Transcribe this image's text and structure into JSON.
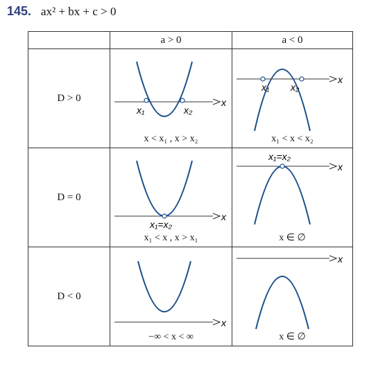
{
  "header": {
    "number": "145.",
    "inequality": "ax² + bx + c > 0"
  },
  "table": {
    "col_headers": [
      "a > 0",
      "a < 0"
    ],
    "rows": [
      {
        "label": "D > 0",
        "pos_condition": "x < x₁ , x > x₂",
        "neg_condition": "x₁ < x < x₂"
      },
      {
        "label": "D = 0",
        "pos_condition": "x₁ < x , x > x₁",
        "neg_condition": "x ∈ ∅"
      },
      {
        "label": "D < 0",
        "pos_condition": "−∞ < x < ∞",
        "neg_condition": "x ∈ ∅"
      }
    ]
  },
  "graph_labels": {
    "axis": "x",
    "root1": "x₁",
    "root2": "x₂",
    "double_root": "x₁=x₂"
  },
  "colors": {
    "curve": "#1a4f8b",
    "axis": "#333333",
    "number": "#2f3f7f"
  }
}
